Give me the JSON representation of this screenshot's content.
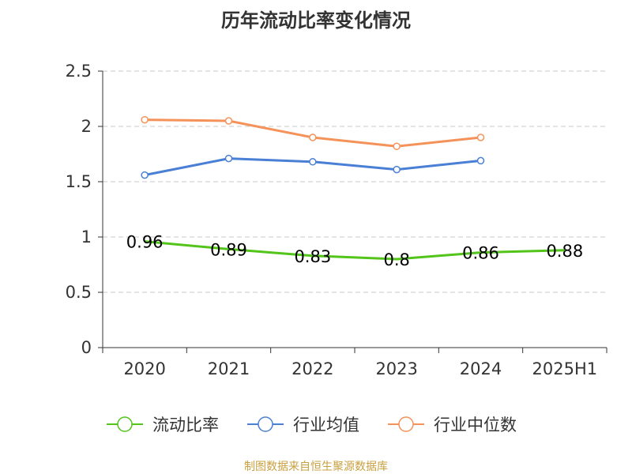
{
  "chart_data": {
    "type": "line",
    "title": "历年流动比率变化情况",
    "categories": [
      "2020",
      "2021",
      "2022",
      "2023",
      "2024",
      "2025H1"
    ],
    "ylim": [
      0,
      2.5
    ],
    "yticks": [
      "0",
      "0.5",
      "1",
      "1.5",
      "2",
      "2.5"
    ],
    "grid": true,
    "legend_position": "bottom",
    "series": [
      {
        "name": "流动比率",
        "color": "#52c41a",
        "values": [
          0.96,
          0.89,
          0.83,
          0.8,
          0.86,
          0.88
        ],
        "labels": [
          "0.96",
          "0.89",
          "0.83",
          "0.8",
          "0.86",
          "0.88"
        ],
        "markers": false
      },
      {
        "name": "行业均值",
        "color": "#4a7fd6",
        "values": [
          1.56,
          1.71,
          1.68,
          1.61,
          1.69,
          null
        ],
        "markers": true
      },
      {
        "name": "行业中位数",
        "color": "#f5925a",
        "values": [
          2.06,
          2.05,
          1.9,
          1.82,
          1.9,
          null
        ],
        "markers": true
      }
    ]
  },
  "footer": {
    "source": "制图数据来自恒生聚源数据库"
  }
}
